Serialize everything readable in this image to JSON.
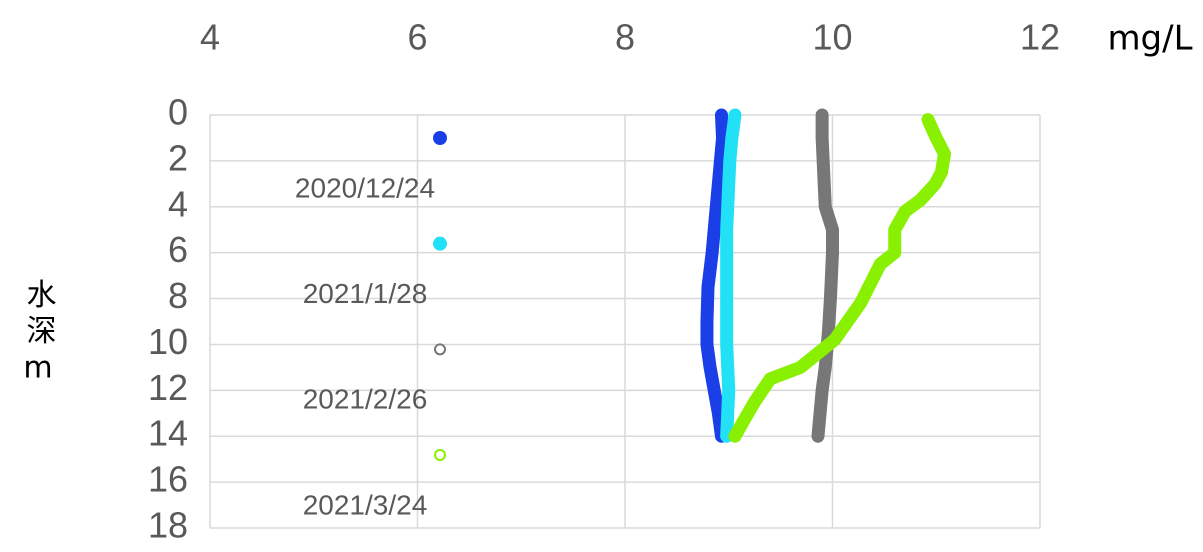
{
  "chart_data": {
    "type": "line",
    "x_axis_label": "mg/L",
    "y_axis_label": "水深m",
    "xlim": [
      4,
      12
    ],
    "xticks": [
      4,
      6,
      8,
      10,
      12
    ],
    "ylim": [
      0,
      18
    ],
    "yticks": [
      0,
      2,
      4,
      6,
      8,
      10,
      12,
      14,
      16,
      18
    ],
    "y_reversed": true,
    "x_axis_position": "top",
    "grid": true,
    "legend_position": "inside-left",
    "series": [
      {
        "name": "2020/12/24",
        "color": "#1a3fe6",
        "legend_marker": "filled",
        "x": [
          8.93,
          8.94,
          8.92,
          8.9,
          8.88,
          8.86,
          8.84,
          8.8,
          8.79,
          8.79,
          8.82,
          8.86,
          8.9,
          8.93
        ],
        "y": [
          0,
          1,
          2,
          3,
          4,
          5,
          6,
          7.5,
          9,
          10,
          11,
          12,
          13,
          14
        ]
      },
      {
        "name": "2021/1/28",
        "color": "#22e0f5",
        "legend_marker": "filled",
        "x": [
          9.06,
          9.03,
          9.01,
          9.0,
          8.99,
          8.98,
          8.98,
          8.98,
          8.98,
          8.99,
          9.0,
          8.99,
          8.98
        ],
        "y": [
          0,
          1,
          2,
          3,
          4,
          5,
          6,
          8,
          10,
          11,
          12,
          13,
          14
        ]
      },
      {
        "name": "2021/2/26",
        "color": "#777777",
        "legend_marker": "hollow",
        "x": [
          9.9,
          9.9,
          9.91,
          9.92,
          9.93,
          10.0,
          10.0,
          9.99,
          9.98,
          9.96,
          9.93,
          9.9,
          9.88,
          9.86
        ],
        "y": [
          0,
          1,
          2,
          3,
          4,
          5,
          6,
          7,
          8,
          9.5,
          11,
          12,
          13,
          14
        ]
      },
      {
        "name": "2021/3/24",
        "color": "#88f000",
        "legend_marker": "hollow",
        "x": [
          10.92,
          11.0,
          11.08,
          11.05,
          10.99,
          10.85,
          10.7,
          10.6,
          10.6,
          10.46,
          10.27,
          10.02,
          9.69,
          9.4,
          9.25,
          9.16,
          9.06
        ],
        "y": [
          0.2,
          1,
          1.7,
          2.5,
          3.0,
          3.7,
          4.2,
          5.0,
          6.0,
          6.5,
          8.2,
          9.8,
          11.0,
          11.5,
          12.5,
          13.2,
          14
        ]
      }
    ]
  }
}
